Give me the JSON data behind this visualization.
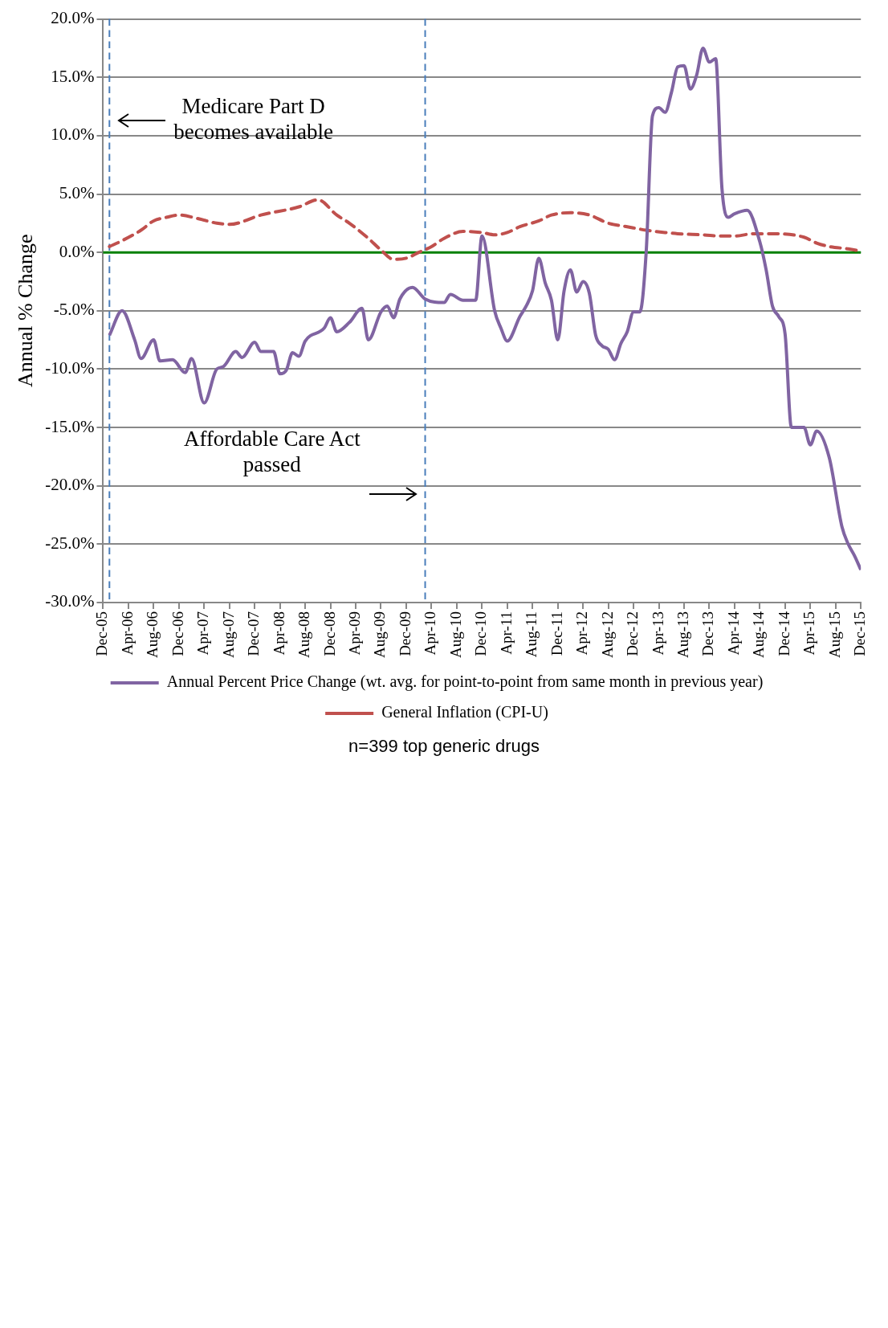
{
  "chart_data": {
    "type": "line",
    "ylabel": "Annual % Change",
    "annotations": [
      "n=399 top generic drugs"
    ],
    "xlim": [
      "2005-12",
      "2015-12"
    ],
    "xticks": [
      {
        "value": "2005-12",
        "label": "Dec-05"
      },
      {
        "value": "2006-04",
        "label": "Apr-06"
      },
      {
        "value": "2006-08",
        "label": "Aug-06"
      },
      {
        "value": "2006-12",
        "label": "Dec-06"
      },
      {
        "value": "2007-04",
        "label": "Apr-07"
      },
      {
        "value": "2007-08",
        "label": "Aug-07"
      },
      {
        "value": "2007-12",
        "label": "Dec-07"
      },
      {
        "value": "2008-04",
        "label": "Apr-08"
      },
      {
        "value": "2008-08",
        "label": "Aug-08"
      },
      {
        "value": "2008-12",
        "label": "Dec-08"
      },
      {
        "value": "2009-04",
        "label": "Apr-09"
      },
      {
        "value": "2009-08",
        "label": "Aug-09"
      },
      {
        "value": "2009-12",
        "label": "Dec-09"
      },
      {
        "value": "2010-04",
        "label": "Apr-10"
      },
      {
        "value": "2010-08",
        "label": "Aug-10"
      },
      {
        "value": "2010-12",
        "label": "Dec-10"
      },
      {
        "value": "2011-04",
        "label": "Apr-11"
      },
      {
        "value": "2011-08",
        "label": "Aug-11"
      },
      {
        "value": "2011-12",
        "label": "Dec-11"
      },
      {
        "value": "2012-04",
        "label": "Apr-12"
      },
      {
        "value": "2012-08",
        "label": "Aug-12"
      },
      {
        "value": "2012-12",
        "label": "Dec-12"
      },
      {
        "value": "2013-04",
        "label": "Apr-13"
      },
      {
        "value": "2013-08",
        "label": "Aug-13"
      },
      {
        "value": "2013-12",
        "label": "Dec-13"
      },
      {
        "value": "2014-04",
        "label": "Apr-14"
      },
      {
        "value": "2014-08",
        "label": "Aug-14"
      },
      {
        "value": "2014-12",
        "label": "Dec-14"
      },
      {
        "value": "2015-04",
        "label": "Apr-15"
      },
      {
        "value": "2015-08",
        "label": "Aug-15"
      },
      {
        "value": "2015-12",
        "label": "Dec-15"
      }
    ],
    "ylim": [
      -30,
      20
    ],
    "yticks": [
      {
        "value": 20,
        "label": "20.0%"
      },
      {
        "value": 15,
        "label": "15.0%"
      },
      {
        "value": 10,
        "label": "10.0%"
      },
      {
        "value": 5,
        "label": "5.0%"
      },
      {
        "value": 0,
        "label": "0.0%"
      },
      {
        "value": -5,
        "label": "-5.0%"
      },
      {
        "value": -10,
        "label": "-10.0%"
      },
      {
        "value": -15,
        "label": "-15.0%"
      },
      {
        "value": -20,
        "label": "-20.0%"
      },
      {
        "value": -25,
        "label": "-25.0%"
      },
      {
        "value": -30,
        "label": "-30.0%"
      }
    ],
    "grid": "y",
    "legend": "bottom",
    "marker": "none",
    "ref_lines": [
      {
        "axis": "y",
        "value": 0,
        "color": "#008000",
        "line_style": "solid"
      },
      {
        "axis": "x",
        "value": "2006-01",
        "label": "Medicare Part D becomes available",
        "color": "#4a7ebb",
        "line_style": "dashed"
      },
      {
        "axis": "x",
        "value": "2010-03",
        "label": "Affordable Care Act passed",
        "color": "#4a7ebb",
        "line_style": "dashed"
      }
    ],
    "series": [
      {
        "name": "Annual Percent Price Change (wt. avg. for point-to-point from same month in previous year)",
        "color": "#8064a2",
        "line_style": "solid",
        "x": [
          "2006-01",
          "2006-03",
          "2006-05",
          "2006-06",
          "2006-08",
          "2006-09",
          "2006-11",
          "2007-01",
          "2007-02",
          "2007-04",
          "2007-06",
          "2007-07",
          "2007-09",
          "2007-10",
          "2007-12",
          "2008-01",
          "2008-03",
          "2008-04",
          "2008-05",
          "2008-06",
          "2008-07",
          "2008-08",
          "2008-11",
          "2008-12",
          "2009-01",
          "2009-03",
          "2009-05",
          "2009-06",
          "2009-08",
          "2009-09",
          "2009-10",
          "2009-11",
          "2010-01",
          "2010-03",
          "2010-06",
          "2010-07",
          "2010-09",
          "2010-11",
          "2010-12",
          "2011-02",
          "2011-03",
          "2011-04",
          "2011-06",
          "2011-07",
          "2011-08",
          "2011-09",
          "2011-10",
          "2011-11",
          "2011-12",
          "2012-01",
          "2012-02",
          "2012-03",
          "2012-04",
          "2012-05",
          "2012-06",
          "2012-07",
          "2012-08",
          "2012-09",
          "2012-10",
          "2012-11",
          "2012-12",
          "2013-01",
          "2013-02",
          "2013-03",
          "2013-04",
          "2013-05",
          "2013-06",
          "2013-07",
          "2013-08",
          "2013-09",
          "2013-10",
          "2013-11",
          "2013-12",
          "2014-01",
          "2014-02",
          "2014-03",
          "2014-04",
          "2014-06",
          "2014-08",
          "2014-09",
          "2014-10",
          "2014-11",
          "2014-12",
          "2015-01",
          "2015-03",
          "2015-04",
          "2015-05",
          "2015-07",
          "2015-09",
          "2015-10",
          "2015-11",
          "2015-12"
        ],
        "values": [
          -7.1,
          -5.0,
          -7.5,
          -9.1,
          -7.5,
          -9.3,
          -9.2,
          -10.3,
          -9.1,
          -12.9,
          -10.0,
          -9.8,
          -8.5,
          -9.0,
          -7.7,
          -8.5,
          -8.5,
          -10.4,
          -10.1,
          -8.6,
          -8.9,
          -7.6,
          -6.5,
          -5.6,
          -6.8,
          -6.0,
          -4.8,
          -7.5,
          -5.1,
          -4.6,
          -5.6,
          -4.0,
          -3.0,
          -4.0,
          -4.3,
          -3.6,
          -4.1,
          -4.1,
          1.4,
          -5.0,
          -6.5,
          -7.6,
          -5.5,
          -4.6,
          -3.3,
          -0.5,
          -2.6,
          -4.1,
          -7.5,
          -3.3,
          -1.5,
          -3.4,
          -2.5,
          -3.5,
          -7.1,
          -8.0,
          -8.3,
          -9.2,
          -7.8,
          -6.8,
          -5.1,
          -5.1,
          0.0,
          11.7,
          12.4,
          12.0,
          13.7,
          15.9,
          16.0,
          14.0,
          15.2,
          17.5,
          16.3,
          16.6,
          5.5,
          3.0,
          3.3,
          3.6,
          0.9,
          -1.5,
          -4.6,
          -5.5,
          -7.0,
          -15.0,
          -15.0,
          -16.5,
          -15.3,
          -17.6,
          -23.5,
          -25.0,
          -26.0,
          -27.2
        ]
      },
      {
        "name": "General Inflation (CPI-U)",
        "color": "#c0504d",
        "line_style": "dashed",
        "x": [
          "2006-01",
          "2006-03",
          "2006-06",
          "2006-08",
          "2006-10",
          "2006-12",
          "2007-03",
          "2007-06",
          "2007-08",
          "2008-01",
          "2008-07",
          "2008-10",
          "2009-01",
          "2009-03",
          "2009-06",
          "2009-08",
          "2009-10",
          "2009-12",
          "2010-02",
          "2010-04",
          "2010-06",
          "2010-09",
          "2010-12",
          "2011-02",
          "2011-04",
          "2011-06",
          "2011-09",
          "2011-11",
          "2012-02",
          "2012-05",
          "2012-08",
          "2012-11",
          "2013-02",
          "2013-05",
          "2013-07",
          "2013-11",
          "2014-02",
          "2014-04",
          "2014-07",
          "2014-10",
          "2015-03",
          "2015-05",
          "2015-07",
          "2015-10",
          "2015-12"
        ],
        "values": [
          0.5,
          1.0,
          1.9,
          2.7,
          3.0,
          3.2,
          2.9,
          2.5,
          2.4,
          3.2,
          3.9,
          4.5,
          3.2,
          2.5,
          1.2,
          0.2,
          -0.6,
          -0.5,
          0.0,
          0.5,
          1.2,
          1.8,
          1.7,
          1.5,
          1.7,
          2.2,
          2.7,
          3.2,
          3.4,
          3.2,
          2.5,
          2.2,
          1.9,
          1.7,
          1.6,
          1.5,
          1.4,
          1.4,
          1.6,
          1.6,
          1.3,
          0.8,
          0.5,
          0.3,
          0.1
        ]
      }
    ]
  }
}
